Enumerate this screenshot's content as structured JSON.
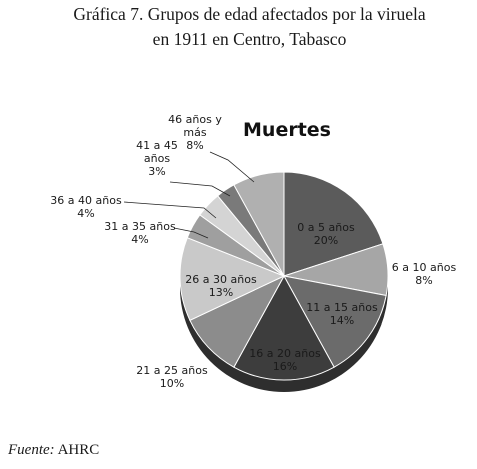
{
  "figure": {
    "title_line1": "Gráfica 7. Grupos de edad afectados por la viruela",
    "title_line2": "en 1911 en Centro, Tabasco",
    "source_label": "Fuente:",
    "source_value": "AHRC"
  },
  "chart_data": {
    "type": "pie",
    "title": "Muertes",
    "categories": [
      "0 a 5 años",
      "6 a 10 años",
      "11 a 15 años",
      "16 a 20 años",
      "21 a 25 años",
      "26 a 30 años",
      "31 a 35 años",
      "36 a 40 años",
      "41 a 45 años",
      "46 años y más"
    ],
    "values": [
      20,
      8,
      14,
      16,
      10,
      13,
      4,
      4,
      3,
      8
    ],
    "value_labels": [
      "20%",
      "8%",
      "14%",
      "16%",
      "10%",
      "13%",
      "4%",
      "4%",
      "3%",
      "8%"
    ],
    "colors": [
      "#5b5b5b",
      "#a6a6a6",
      "#6b6b6b",
      "#3d3d3d",
      "#8c8c8c",
      "#c9c9c9",
      "#9f9f9f",
      "#d4d4d4",
      "#7a7a7a",
      "#b0b0b0"
    ],
    "label_lines": [
      [
        "0 a 5 años",
        "20%"
      ],
      [
        "6 a 10 años",
        "8%"
      ],
      [
        "11 a 15 años",
        "14%"
      ],
      [
        "16 a 20 años",
        "16%"
      ],
      [
        "21 a 25 años",
        "10%"
      ],
      [
        "26 a 30 años",
        "13%"
      ],
      [
        "31 a 35 años",
        "4%"
      ],
      [
        "36 a 40 años",
        "4%"
      ],
      [
        "41 a 45",
        "años",
        "3%"
      ],
      [
        "46 años y",
        "más",
        "8%"
      ]
    ]
  }
}
